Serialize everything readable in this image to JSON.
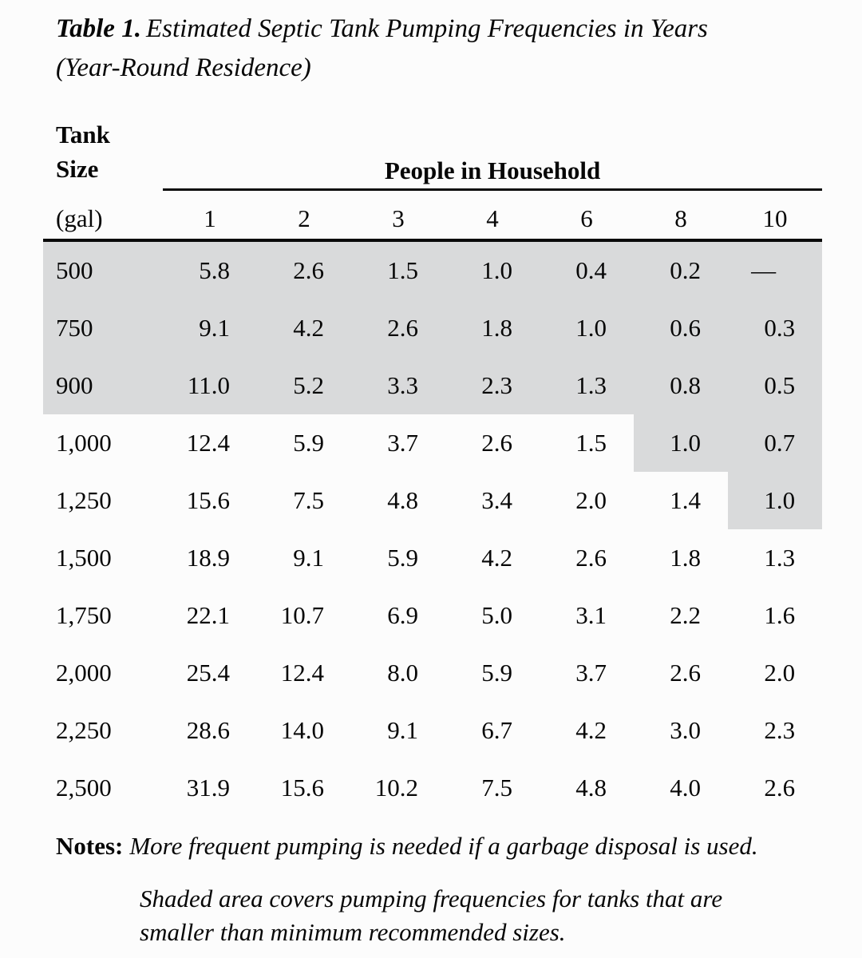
{
  "title": {
    "label": "Table 1.",
    "text": "Estimated Septic Tank Pumping Frequencies in Years (Year-Round Residence)"
  },
  "table": {
    "row_header": {
      "line1": "Tank",
      "line2": "Size",
      "unit": "(gal)"
    },
    "col_group_header": "People in Household",
    "columns": [
      "1",
      "2",
      "3",
      "4",
      "6",
      "8",
      "10"
    ],
    "rows": [
      {
        "tank_size": "500",
        "values": [
          "5.8",
          "2.6",
          "1.5",
          "1.0",
          "0.4",
          "0.2",
          "—"
        ],
        "shaded": [
          true,
          true,
          true,
          true,
          true,
          true,
          true,
          true
        ]
      },
      {
        "tank_size": "750",
        "values": [
          "9.1",
          "4.2",
          "2.6",
          "1.8",
          "1.0",
          "0.6",
          "0.3"
        ],
        "shaded": [
          true,
          true,
          true,
          true,
          true,
          true,
          true,
          true
        ]
      },
      {
        "tank_size": "900",
        "values": [
          "11.0",
          "5.2",
          "3.3",
          "2.3",
          "1.3",
          "0.8",
          "0.5"
        ],
        "shaded": [
          true,
          true,
          true,
          true,
          true,
          true,
          true,
          true
        ]
      },
      {
        "tank_size": "1,000",
        "values": [
          "12.4",
          "5.9",
          "3.7",
          "2.6",
          "1.5",
          "1.0",
          "0.7"
        ],
        "shaded": [
          false,
          false,
          false,
          false,
          false,
          false,
          true,
          true
        ]
      },
      {
        "tank_size": "1,250",
        "values": [
          "15.6",
          "7.5",
          "4.8",
          "3.4",
          "2.0",
          "1.4",
          "1.0"
        ],
        "shaded": [
          false,
          false,
          false,
          false,
          false,
          false,
          false,
          true
        ]
      },
      {
        "tank_size": "1,500",
        "values": [
          "18.9",
          "9.1",
          "5.9",
          "4.2",
          "2.6",
          "1.8",
          "1.3"
        ],
        "shaded": [
          false,
          false,
          false,
          false,
          false,
          false,
          false,
          false
        ]
      },
      {
        "tank_size": "1,750",
        "values": [
          "22.1",
          "10.7",
          "6.9",
          "5.0",
          "3.1",
          "2.2",
          "1.6"
        ],
        "shaded": [
          false,
          false,
          false,
          false,
          false,
          false,
          false,
          false
        ]
      },
      {
        "tank_size": "2,000",
        "values": [
          "25.4",
          "12.4",
          "8.0",
          "5.9",
          "3.7",
          "2.6",
          "2.0"
        ],
        "shaded": [
          false,
          false,
          false,
          false,
          false,
          false,
          false,
          false
        ]
      },
      {
        "tank_size": "2,250",
        "values": [
          "28.6",
          "14.0",
          "9.1",
          "6.7",
          "4.2",
          "3.0",
          "2.3"
        ],
        "shaded": [
          false,
          false,
          false,
          false,
          false,
          false,
          false,
          false
        ]
      },
      {
        "tank_size": "2,500",
        "values": [
          "31.9",
          "15.6",
          "10.2",
          "7.5",
          "4.8",
          "4.0",
          "2.6"
        ],
        "shaded": [
          false,
          false,
          false,
          false,
          false,
          false,
          false,
          false
        ]
      }
    ]
  },
  "notes": {
    "label": "Notes:",
    "text": "More frequent pumping is needed if a garbage disposal is used.",
    "shaded_note": "Shaded area covers pumping frequencies for tanks that are smaller than minimum recommended sizes."
  },
  "colors": {
    "shade": "#d9dadb",
    "rule": "#0a0a0a",
    "background": "#fcfcfc"
  }
}
